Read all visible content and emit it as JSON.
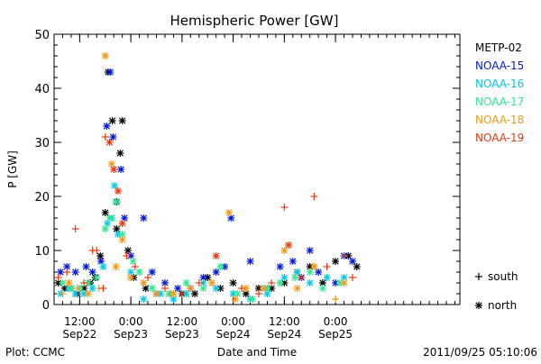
{
  "chart_data": {
    "type": "scatter",
    "title": "Hemispheric Power [GW]",
    "xlabel": "Date and Time",
    "ylabel": "P [GW]",
    "xlim": [
      "2011-09-21T06:00",
      "2011-09-25T05:10"
    ],
    "ylim": [
      0,
      50
    ],
    "yticks": [
      0,
      10,
      20,
      30,
      40,
      50
    ],
    "xticks": [
      {
        "t": "2011-09-21T12:00",
        "top": "12:00",
        "bottom": "Sep22"
      },
      {
        "t": "2011-09-22T00:00",
        "top": "0:00",
        "bottom": "Sep23"
      },
      {
        "t": "2011-09-22T12:00",
        "top": "12:00",
        "bottom": "Sep23"
      },
      {
        "t": "2011-09-23T00:00",
        "top": "0:00",
        "bottom": "Sep24"
      },
      {
        "t": "2011-09-23T12:00",
        "top": "12:00",
        "bottom": "Sep24"
      },
      {
        "t": "2011-09-24T00:00",
        "top": "0:00",
        "bottom": "Sep25"
      }
    ],
    "grid": false,
    "legend_position": "right",
    "marker_key": [
      {
        "symbol": "+",
        "label": "south"
      },
      {
        "symbol": "*",
        "label": "north"
      }
    ],
    "series": [
      {
        "name": "METP-02",
        "color": "#000000",
        "points": [
          [
            "2011-09-21T07:00",
            4,
            "*"
          ],
          [
            "2011-09-21T08:30",
            3,
            "*"
          ],
          [
            "2011-09-21T10:00",
            3,
            "*"
          ],
          [
            "2011-09-21T11:30",
            2,
            "*"
          ],
          [
            "2011-09-21T13:00",
            3,
            "*"
          ],
          [
            "2011-09-21T14:30",
            4,
            "*"
          ],
          [
            "2011-09-21T15:40",
            5,
            "*"
          ],
          [
            "2011-09-21T16:50",
            9,
            "*"
          ],
          [
            "2011-09-21T18:00",
            17,
            "*"
          ],
          [
            "2011-09-21T18:40",
            43,
            "*"
          ],
          [
            "2011-09-21T19:40",
            34,
            "*"
          ],
          [
            "2011-09-21T20:40",
            14,
            "*"
          ],
          [
            "2011-09-21T21:30",
            28,
            "*"
          ],
          [
            "2011-09-21T22:00",
            34,
            "*"
          ],
          [
            "2011-09-21T23:20",
            10,
            "*"
          ],
          [
            "2011-09-22T00:40",
            5,
            "*"
          ],
          [
            "2011-09-22T03:30",
            3,
            "*"
          ],
          [
            "2011-09-22T06:00",
            2,
            "*"
          ],
          [
            "2011-09-22T09:00",
            2,
            "*"
          ],
          [
            "2011-09-22T12:00",
            2,
            "*"
          ],
          [
            "2011-09-22T15:00",
            2,
            "*"
          ],
          [
            "2011-09-22T18:00",
            5,
            "*"
          ],
          [
            "2011-09-22T21:00",
            3,
            "*"
          ],
          [
            "2011-09-23T00:00",
            4,
            "*"
          ],
          [
            "2011-09-23T03:00",
            2,
            "*"
          ],
          [
            "2011-09-23T06:00",
            3,
            "*"
          ],
          [
            "2011-09-23T09:00",
            3,
            "*"
          ],
          [
            "2011-09-23T12:00",
            4,
            "*"
          ],
          [
            "2011-09-23T15:00",
            6,
            "*"
          ],
          [
            "2011-09-23T18:00",
            7,
            "*"
          ],
          [
            "2011-09-23T21:00",
            4,
            "*"
          ],
          [
            "2011-09-24T00:00",
            8,
            "*"
          ],
          [
            "2011-09-24T03:00",
            9,
            "*"
          ],
          [
            "2011-09-24T05:00",
            7,
            "*"
          ]
        ]
      },
      {
        "name": "NOAA-15",
        "color": "#0018d8",
        "points": [
          [
            "2011-09-21T07:30",
            6,
            "*"
          ],
          [
            "2011-09-21T09:00",
            7,
            "*"
          ],
          [
            "2011-09-21T11:00",
            6,
            "*"
          ],
          [
            "2011-09-21T13:30",
            7,
            "*"
          ],
          [
            "2011-09-21T15:00",
            6,
            "*"
          ],
          [
            "2011-09-21T17:00",
            8,
            "*"
          ],
          [
            "2011-09-21T18:20",
            33,
            "*"
          ],
          [
            "2011-09-21T19:10",
            43,
            "*"
          ],
          [
            "2011-09-21T19:50",
            31,
            "*"
          ],
          [
            "2011-09-21T20:40",
            19,
            "*"
          ],
          [
            "2011-09-21T21:40",
            25,
            "*"
          ],
          [
            "2011-09-21T22:30",
            16,
            "*"
          ],
          [
            "2011-09-22T00:00",
            9,
            "*"
          ],
          [
            "2011-09-22T03:00",
            16,
            "*"
          ],
          [
            "2011-09-22T05:00",
            6,
            "*"
          ],
          [
            "2011-09-22T08:00",
            4,
            "*"
          ],
          [
            "2011-09-22T11:00",
            3,
            "*"
          ],
          [
            "2011-09-22T14:00",
            3,
            "*"
          ],
          [
            "2011-09-22T17:00",
            5,
            "*"
          ],
          [
            "2011-09-22T20:00",
            6,
            "*"
          ],
          [
            "2011-09-22T22:00",
            7,
            "*"
          ],
          [
            "2011-09-22T23:30",
            16,
            "*"
          ],
          [
            "2011-09-23T04:00",
            8,
            "*"
          ],
          [
            "2011-09-23T08:00",
            3,
            "*"
          ],
          [
            "2011-09-23T11:00",
            7,
            "*"
          ],
          [
            "2011-09-23T14:00",
            8,
            "*"
          ],
          [
            "2011-09-23T16:00",
            5,
            "*"
          ],
          [
            "2011-09-23T18:00",
            10,
            "*"
          ],
          [
            "2011-09-23T20:00",
            6,
            "*"
          ],
          [
            "2011-09-24T00:00",
            4,
            "*"
          ],
          [
            "2011-09-24T02:00",
            9,
            "*"
          ],
          [
            "2011-09-24T04:00",
            8,
            "*"
          ]
        ]
      },
      {
        "name": "NOAA-16",
        "color": "#00c8e8",
        "points": [
          [
            "2011-09-21T07:30",
            2,
            "*"
          ],
          [
            "2011-09-21T09:30",
            3,
            "*"
          ],
          [
            "2011-09-21T11:00",
            2,
            "*"
          ],
          [
            "2011-09-21T13:00",
            2,
            "*"
          ],
          [
            "2011-09-21T15:00",
            3,
            "*"
          ],
          [
            "2011-09-21T17:30",
            7,
            "*"
          ],
          [
            "2011-09-21T18:30",
            15,
            "*"
          ],
          [
            "2011-09-21T19:30",
            16,
            "*"
          ],
          [
            "2011-09-21T20:10",
            22,
            "*"
          ],
          [
            "2011-09-21T21:00",
            13,
            "*"
          ],
          [
            "2011-09-22T00:00",
            6,
            "*"
          ],
          [
            "2011-09-22T03:00",
            1,
            "*"
          ],
          [
            "2011-09-22T07:00",
            2,
            "*"
          ],
          [
            "2011-09-22T10:00",
            1,
            "*"
          ],
          [
            "2011-09-22T13:00",
            2,
            "*"
          ],
          [
            "2011-09-22T17:00",
            4,
            "*"
          ],
          [
            "2011-09-22T20:00",
            3,
            "*"
          ],
          [
            "2011-09-23T00:00",
            2,
            "*"
          ],
          [
            "2011-09-23T04:00",
            1,
            "*"
          ],
          [
            "2011-09-23T08:00",
            2,
            "*"
          ],
          [
            "2011-09-23T12:00",
            5,
            "*"
          ],
          [
            "2011-09-23T15:00",
            6,
            "*"
          ],
          [
            "2011-09-23T18:00",
            4,
            "*"
          ],
          [
            "2011-09-23T22:00",
            5,
            "*"
          ],
          [
            "2011-09-24T02:00",
            5,
            "*"
          ]
        ]
      },
      {
        "name": "NOAA-17",
        "color": "#30e890",
        "points": [
          [
            "2011-09-21T08:00",
            4,
            "*"
          ],
          [
            "2011-09-21T10:00",
            3,
            "*"
          ],
          [
            "2011-09-21T12:00",
            3,
            "*"
          ],
          [
            "2011-09-21T14:00",
            4,
            "*"
          ],
          [
            "2011-09-21T16:00",
            5,
            "*"
          ],
          [
            "2011-09-21T18:00",
            14,
            "*"
          ],
          [
            "2011-09-21T19:00",
            16,
            "*"
          ],
          [
            "2011-09-21T20:30",
            19,
            "*"
          ],
          [
            "2011-09-21T22:00",
            13,
            "*"
          ],
          [
            "2011-09-22T00:30",
            8,
            "*"
          ],
          [
            "2011-09-22T02:00",
            6,
            "*"
          ],
          [
            "2011-09-22T05:00",
            3,
            "*"
          ],
          [
            "2011-09-22T09:00",
            2,
            "*"
          ],
          [
            "2011-09-22T13:00",
            4,
            "*"
          ],
          [
            "2011-09-22T17:00",
            3,
            "*"
          ],
          [
            "2011-09-22T21:00",
            7,
            "*"
          ],
          [
            "2011-09-23T01:00",
            2,
            "*"
          ],
          [
            "2011-09-23T04:30",
            1,
            "*"
          ],
          [
            "2011-09-23T08:00",
            3,
            "*"
          ],
          [
            "2011-09-23T11:00",
            4,
            "*"
          ],
          [
            "2011-09-23T14:30",
            5,
            "*"
          ],
          [
            "2011-09-23T18:00",
            6,
            "*"
          ],
          [
            "2011-09-23T21:00",
            3,
            "*"
          ],
          [
            "2011-09-24T01:00",
            4,
            "*"
          ]
        ]
      },
      {
        "name": "NOAA-18",
        "color": "#f09a1a",
        "points": [
          [
            "2011-09-21T08:00",
            2,
            "+"
          ],
          [
            "2011-09-21T09:30",
            4,
            "*"
          ],
          [
            "2011-09-21T11:30",
            3,
            "+"
          ],
          [
            "2011-09-21T14:00",
            2,
            "*"
          ],
          [
            "2011-09-21T16:30",
            3,
            "+"
          ],
          [
            "2011-09-21T18:00",
            46,
            "*"
          ],
          [
            "2011-09-21T19:30",
            26,
            "*"
          ],
          [
            "2011-09-21T20:30",
            7,
            "*"
          ],
          [
            "2011-09-21T22:00",
            12,
            "*"
          ],
          [
            "2011-09-22T00:00",
            5,
            "*"
          ],
          [
            "2011-09-22T03:00",
            4,
            "*"
          ],
          [
            "2011-09-22T06:00",
            2,
            "*"
          ],
          [
            "2011-09-22T10:00",
            2,
            "*"
          ],
          [
            "2011-09-22T14:00",
            3,
            "*"
          ],
          [
            "2011-09-22T19:00",
            4,
            "*"
          ],
          [
            "2011-09-22T23:00",
            17,
            "*"
          ],
          [
            "2011-09-23T00:30",
            1,
            "*"
          ],
          [
            "2011-09-23T03:00",
            3,
            "*"
          ],
          [
            "2011-09-23T07:00",
            3,
            "*"
          ],
          [
            "2011-09-23T12:00",
            10,
            "*"
          ],
          [
            "2011-09-23T15:00",
            3,
            "*"
          ],
          [
            "2011-09-23T19:00",
            7,
            "*"
          ],
          [
            "2011-09-24T00:00",
            1,
            "+"
          ],
          [
            "2011-09-24T02:00",
            4,
            "*"
          ]
        ]
      },
      {
        "name": "NOAA-19",
        "color": "#e83a10",
        "points": [
          [
            "2011-09-21T07:00",
            5,
            "+"
          ],
          [
            "2011-09-21T09:00",
            6,
            "+"
          ],
          [
            "2011-09-21T11:00",
            14,
            "+"
          ],
          [
            "2011-09-21T13:00",
            4,
            "+"
          ],
          [
            "2011-09-21T15:00",
            10,
            "+"
          ],
          [
            "2011-09-21T16:00",
            10,
            "+"
          ],
          [
            "2011-09-21T17:30",
            3,
            "+"
          ],
          [
            "2011-09-21T18:00",
            31,
            "+"
          ],
          [
            "2011-09-21T19:00",
            30,
            "*"
          ],
          [
            "2011-09-21T20:00",
            25,
            "*"
          ],
          [
            "2011-09-21T21:00",
            21,
            "*"
          ],
          [
            "2011-09-21T22:00",
            15,
            "*"
          ],
          [
            "2011-09-21T23:00",
            9,
            "+"
          ],
          [
            "2011-09-22T01:00",
            7,
            "+"
          ],
          [
            "2011-09-22T04:00",
            5,
            "+"
          ],
          [
            "2011-09-22T08:00",
            3,
            "+"
          ],
          [
            "2011-09-22T12:00",
            2,
            "+"
          ],
          [
            "2011-09-22T16:00",
            4,
            "+"
          ],
          [
            "2011-09-22T20:00",
            9,
            "*"
          ],
          [
            "2011-09-23T02:00",
            3,
            "+"
          ],
          [
            "2011-09-23T06:00",
            2,
            "+"
          ],
          [
            "2011-09-23T09:00",
            4,
            "+"
          ],
          [
            "2011-09-23T12:00",
            18,
            "+"
          ],
          [
            "2011-09-23T13:00",
            11,
            "*"
          ],
          [
            "2011-09-23T16:00",
            5,
            "+"
          ],
          [
            "2011-09-23T19:00",
            20,
            "+"
          ],
          [
            "2011-09-23T22:00",
            7,
            "+"
          ],
          [
            "2011-09-24T02:00",
            9,
            "+"
          ],
          [
            "2011-09-24T04:00",
            5,
            "+"
          ]
        ]
      }
    ]
  },
  "footer": {
    "left": "Plot: CCMC",
    "right": "2011/09/25 05:10:06"
  }
}
